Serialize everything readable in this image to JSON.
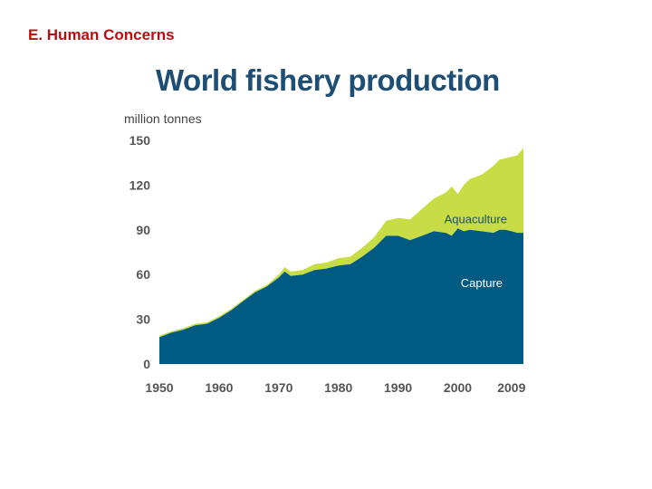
{
  "slide": {
    "heading": "E. Human Concerns"
  },
  "chart_data": {
    "type": "area",
    "stacked": true,
    "title": "World fishery production",
    "ylabel": "million tonnes",
    "xlabel": "",
    "xlim": [
      1950,
      2011
    ],
    "ylim": [
      0,
      150
    ],
    "y_ticks": [
      0,
      30,
      60,
      90,
      120,
      150
    ],
    "x_ticks": [
      1950,
      1960,
      1970,
      1980,
      1990,
      2000,
      2009
    ],
    "grid": false,
    "legend": "inline labels on areas",
    "colors": {
      "capture": "#005a82",
      "aquaculture": "#c8dc45"
    },
    "x": [
      1950,
      1952,
      1954,
      1956,
      1958,
      1960,
      1962,
      1964,
      1966,
      1968,
      1970,
      1971,
      1972,
      1974,
      1976,
      1978,
      1980,
      1982,
      1984,
      1986,
      1988,
      1990,
      1992,
      1994,
      1996,
      1998,
      1999,
      2000,
      2001,
      2002,
      2004,
      2006,
      2007,
      2008,
      2009,
      2010,
      2011
    ],
    "series": [
      {
        "name": "Capture",
        "label": "Capture",
        "values": [
          18,
          21,
          23,
          26,
          27,
          31,
          36,
          42,
          48,
          52,
          58,
          62,
          59,
          60,
          63,
          64,
          66,
          67,
          72,
          78,
          86,
          86,
          83,
          86,
          89,
          88,
          86,
          91,
          89,
          90,
          89,
          88,
          90,
          90,
          89,
          88,
          88
        ]
      },
      {
        "name": "Aquaculture",
        "label": "Aquaculture",
        "values": [
          1,
          1,
          1,
          1,
          1,
          1,
          1,
          1,
          1,
          1,
          2,
          3,
          3,
          3,
          4,
          4,
          5,
          5,
          6,
          7,
          10,
          12,
          14,
          18,
          22,
          27,
          33,
          23,
          31,
          34,
          38,
          45,
          47,
          48,
          50,
          52,
          57
        ]
      }
    ]
  }
}
